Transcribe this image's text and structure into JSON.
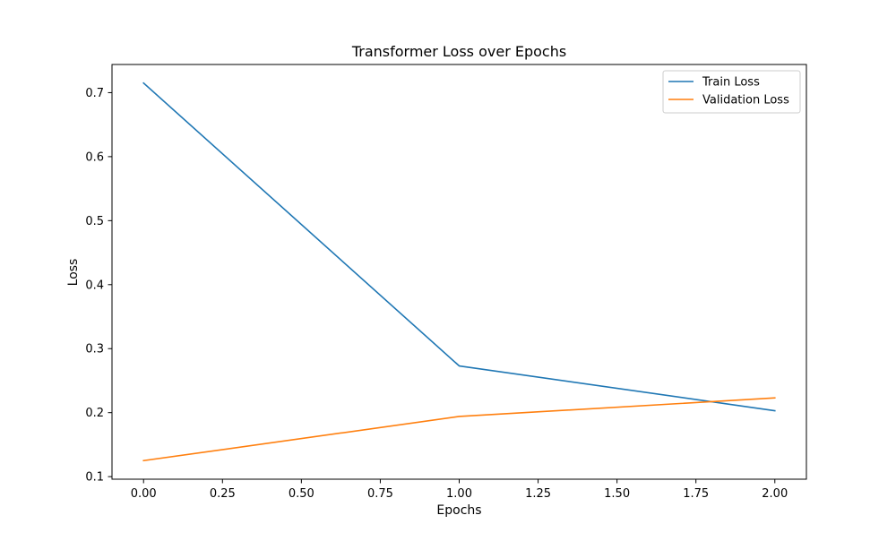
{
  "chart_data": {
    "type": "line",
    "title": "Transformer Loss over Epochs",
    "xlabel": "Epochs",
    "ylabel": "Loss",
    "x": [
      0,
      1,
      2
    ],
    "series": [
      {
        "name": "Train Loss",
        "color": "#1f77b4",
        "values": [
          0.715,
          0.273,
          0.203
        ]
      },
      {
        "name": "Validation Loss",
        "color": "#ff7f0e",
        "values": [
          0.125,
          0.194,
          0.223
        ]
      }
    ],
    "xlim": [
      -0.1,
      2.1
    ],
    "ylim": [
      0.096,
      0.744
    ],
    "xticks": [
      0.0,
      0.25,
      0.5,
      0.75,
      1.0,
      1.25,
      1.5,
      1.75,
      2.0
    ],
    "xtick_labels": [
      "0.00",
      "0.25",
      "0.50",
      "0.75",
      "1.00",
      "1.25",
      "1.50",
      "1.75",
      "2.00"
    ],
    "yticks": [
      0.1,
      0.2,
      0.3,
      0.4,
      0.5,
      0.6,
      0.7
    ],
    "ytick_labels": [
      "0.1",
      "0.2",
      "0.3",
      "0.4",
      "0.5",
      "0.6",
      "0.7"
    ],
    "grid": false,
    "legend_position": "top-right"
  }
}
